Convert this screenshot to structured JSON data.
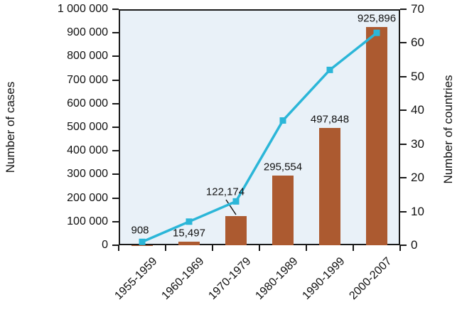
{
  "chart_data": {
    "type": "bar",
    "categories": [
      "1955-1959",
      "1960-1969",
      "1970-1979",
      "1980-1989",
      "1990-1999",
      "2000-2007"
    ],
    "series": [
      {
        "name": "Number of cases",
        "type": "bar",
        "values": [
          908,
          15497,
          122174,
          295554,
          497848,
          925896
        ],
        "value_labels": [
          "908",
          "15,497",
          "122,174",
          "295,554",
          "497,848",
          "925,896"
        ],
        "color": "#ac5a30"
      },
      {
        "name": "Number of countries",
        "type": "line",
        "values": [
          1,
          7,
          13,
          37,
          52,
          63
        ],
        "color": "#2bb6d8"
      }
    ],
    "left_axis": {
      "title": "Number of cases",
      "min": 0,
      "max": 1000000,
      "step": 100000,
      "tick_labels": [
        "0",
        "100 000",
        "200 000",
        "300 000",
        "400 000",
        "500 000",
        "600 000",
        "700 000",
        "800 000",
        "900 000",
        "1 000 000"
      ]
    },
    "right_axis": {
      "title": "Number of countries",
      "min": 0,
      "max": 70,
      "step": 10,
      "tick_labels": [
        "0",
        "10",
        "20",
        "30",
        "40",
        "50",
        "60",
        "70"
      ]
    },
    "plot_background": "#e9f1f8",
    "axis_color": "#1a1a1a",
    "grid": false,
    "legend": "none"
  }
}
